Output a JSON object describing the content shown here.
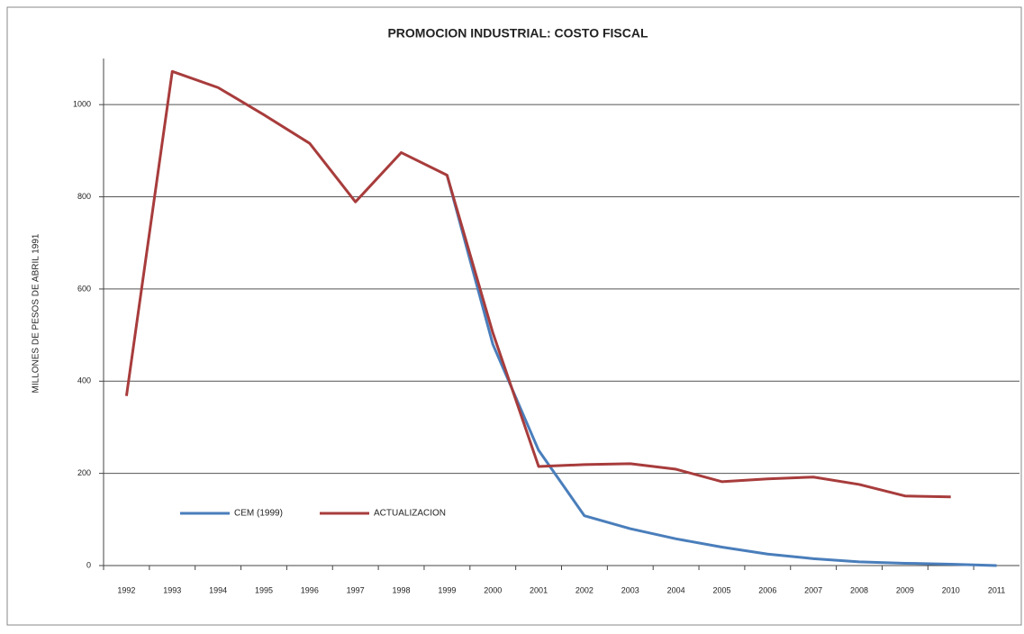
{
  "chart_data": {
    "type": "line",
    "title": "PROMOCION INDUSTRIAL: COSTO FISCAL",
    "y_label": "MILLONES DE PESOS DE ABRIL 1991",
    "categories": [
      "1992",
      "1993",
      "1994",
      "1995",
      "1996",
      "1997",
      "1998",
      "1999",
      "2000",
      "2001",
      "2002",
      "2003",
      "2004",
      "2005",
      "2006",
      "2007",
      "2008",
      "2009",
      "2010",
      "2011"
    ],
    "series": [
      {
        "name": "CEM (1999)",
        "color": "#4a7ebb",
        "values": [
          null,
          null,
          null,
          null,
          null,
          null,
          null,
          847,
          480,
          250,
          108,
          80,
          58,
          40,
          25,
          15,
          8,
          5,
          3,
          0
        ]
      },
      {
        "name": "ACTUALIZACION",
        "color": "#a83c3c",
        "values": [
          368,
          1072,
          1037,
          978,
          916,
          789,
          896,
          847,
          505,
          215,
          219,
          221,
          209,
          182,
          188,
          192,
          176,
          151,
          149,
          null
        ]
      }
    ],
    "ylim": [
      0,
      1100
    ],
    "yticks": [
      0,
      200,
      400,
      600,
      800,
      1000
    ],
    "grid": true,
    "legend": "lower-left"
  }
}
